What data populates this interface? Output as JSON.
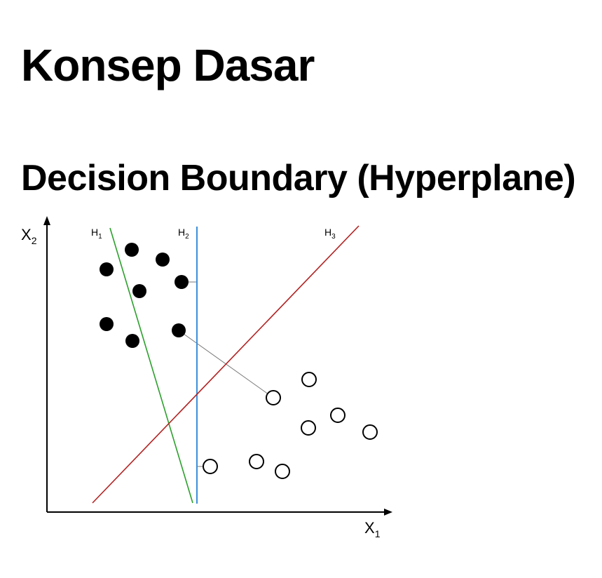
{
  "title": "Konsep Dasar",
  "subtitle": "Decision Boundary (Hyperplane)",
  "axes": {
    "x_label": "X",
    "x_sub": "1",
    "y_label": "X",
    "y_sub": "2"
  },
  "hyperplanes": [
    {
      "label": "H",
      "sub": "1",
      "color": "#2ca02c"
    },
    {
      "label": "H",
      "sub": "2",
      "color": "#3b8fd9"
    },
    {
      "label": "H",
      "sub": "3",
      "color": "#b22222"
    }
  ],
  "classes": [
    {
      "name": "filled",
      "color": "#000000"
    },
    {
      "name": "hollow",
      "color": "#ffffff"
    }
  ]
}
